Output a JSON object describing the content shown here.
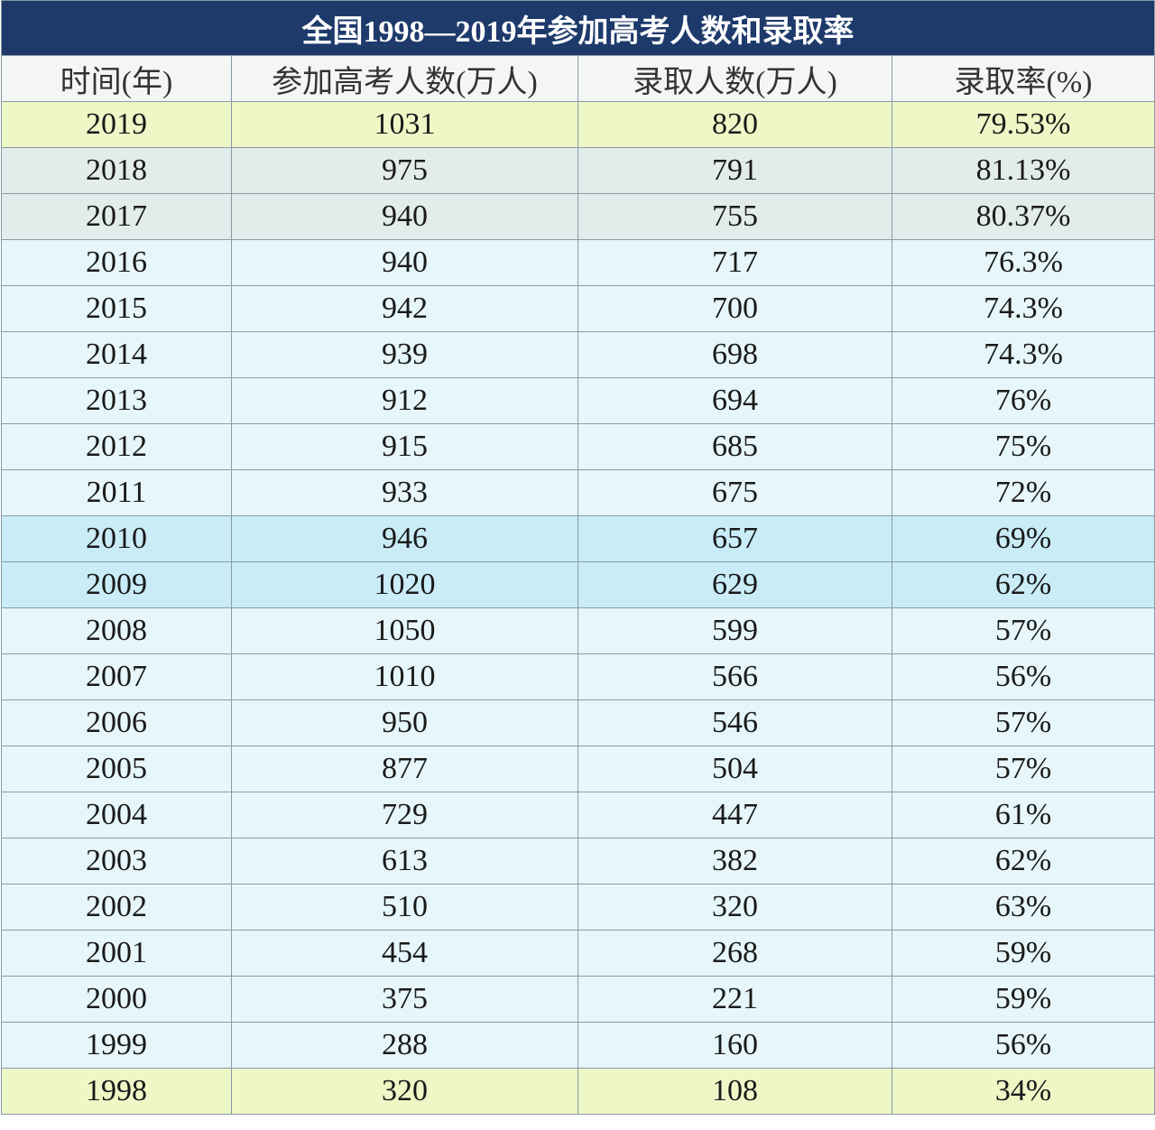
{
  "table": {
    "title": "全国1998—2019年参加高考人数和录取率",
    "headers": [
      "时间(年)",
      "参加高考人数(万人)",
      "录取人数(万人)",
      "录取率(%)"
    ],
    "rows": [
      [
        "2019",
        "1031",
        "820",
        "79.53%"
      ],
      [
        "2018",
        "975",
        "791",
        "81.13%"
      ],
      [
        "2017",
        "940",
        "755",
        "80.37%"
      ],
      [
        "2016",
        "940",
        "717",
        "76.3%"
      ],
      [
        "2015",
        "942",
        "700",
        "74.3%"
      ],
      [
        "2014",
        "939",
        "698",
        "74.3%"
      ],
      [
        "2013",
        "912",
        "694",
        "76%"
      ],
      [
        "2012",
        "915",
        "685",
        "75%"
      ],
      [
        "2011",
        "933",
        "675",
        "72%"
      ],
      [
        "2010",
        "946",
        "657",
        "69%"
      ],
      [
        "2009",
        "1020",
        "629",
        "62%"
      ],
      [
        "2008",
        "1050",
        "599",
        "57%"
      ],
      [
        "2007",
        "1010",
        "566",
        "56%"
      ],
      [
        "2006",
        "950",
        "546",
        "57%"
      ],
      [
        "2005",
        "877",
        "504",
        "57%"
      ],
      [
        "2004",
        "729",
        "447",
        "61%"
      ],
      [
        "2003",
        "613",
        "382",
        "62%"
      ],
      [
        "2002",
        "510",
        "320",
        "63%"
      ],
      [
        "2001",
        "454",
        "268",
        "59%"
      ],
      [
        "2000",
        "375",
        "221",
        "59%"
      ],
      [
        "1999",
        "288",
        "160",
        "56%"
      ],
      [
        "1998",
        "320",
        "108",
        "34%"
      ]
    ]
  }
}
